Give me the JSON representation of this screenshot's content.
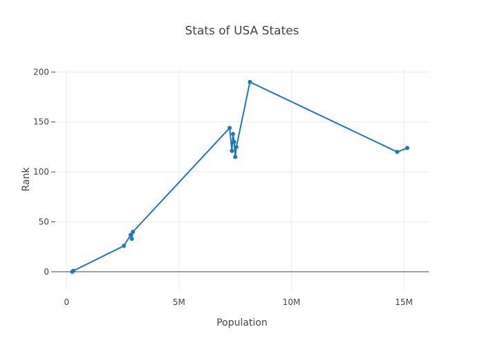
{
  "chart_data": {
    "type": "line",
    "title": "Stats of USA States",
    "xlabel": "Population",
    "ylabel": "Rank",
    "xlim": [
      -500000,
      16100000
    ],
    "ylim": [
      -18,
      203
    ],
    "grid": true,
    "x_ticks": [
      {
        "value": 0,
        "label": "0"
      },
      {
        "value": 5000000,
        "label": "5M"
      },
      {
        "value": 10000000,
        "label": "10M"
      },
      {
        "value": 15000000,
        "label": "15M"
      }
    ],
    "y_ticks": [
      {
        "value": 0,
        "label": "0"
      },
      {
        "value": 50,
        "label": "50"
      },
      {
        "value": 100,
        "label": "100"
      },
      {
        "value": 150,
        "label": "150"
      },
      {
        "value": 200,
        "label": "200"
      }
    ],
    "series": [
      {
        "color": "#1f77b4",
        "mode": "lines+markers",
        "x": [
          250000,
          300000,
          2550000,
          2850000,
          2900000,
          2950000,
          7250000,
          7350000,
          7400000,
          7450000,
          7500000,
          7550000,
          8150000,
          14700000,
          15150000
        ],
        "y": [
          0,
          1,
          26,
          37,
          33,
          40,
          144,
          121,
          138,
          130,
          115,
          125,
          190,
          120,
          124
        ]
      }
    ]
  }
}
